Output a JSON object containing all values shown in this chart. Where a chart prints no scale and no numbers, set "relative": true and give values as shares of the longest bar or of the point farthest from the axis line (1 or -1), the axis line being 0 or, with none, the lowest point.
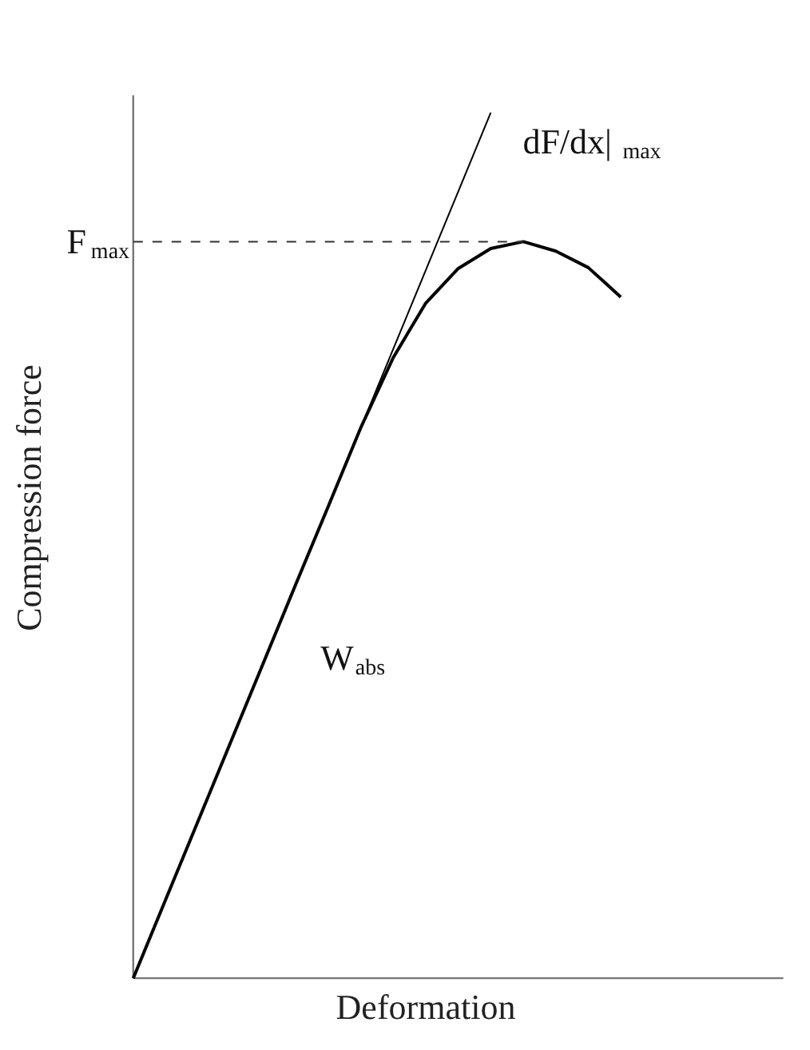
{
  "chart_data": {
    "type": "line",
    "relative": true,
    "xlabel": "Deformation",
    "ylabel": "Compression force",
    "line_style": "solid",
    "categories": [
      null,
      null,
      null,
      null,
      null,
      null,
      null,
      null,
      null,
      null,
      null,
      null,
      null,
      null,
      null,
      null
    ],
    "series": [
      {
        "color": "#000000",
        "values": [
          0,
          0.091,
          0.182,
          0.273,
          0.364,
          0.455,
          0.545,
          0.636,
          0.717,
          0.78,
          0.82,
          0.843,
          0.851,
          0.84,
          0.821,
          0.787
        ]
      },
      {
        "color": "#000000",
        "values": [
          0,
          0.091,
          0.182,
          0.273,
          0.364,
          0.455,
          0.545,
          0.636,
          0.727,
          0.818,
          0.909,
          1.0,
          null,
          null,
          null,
          null
        ]
      }
    ],
    "ref_lines": [
      {
        "axis": "y",
        "value": 0.851,
        "label": "F$_{max}$",
        "line_style": "dashed"
      }
    ],
    "annotations": [
      "dF/dx|$_{max}$",
      "W$_{abs}$"
    ]
  }
}
